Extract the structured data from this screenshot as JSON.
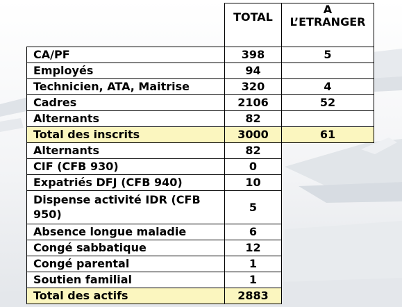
{
  "table": {
    "header": {
      "total": "TOTAL",
      "abroad_line1": "A",
      "abroad_line2": "L’ETRANGER"
    },
    "rows": [
      {
        "label": "CA/PF",
        "total": "398",
        "abroad": "5"
      },
      {
        "label": "Employés",
        "total": "94",
        "abroad": ""
      },
      {
        "label": "Technicien, ATA, Maitrise",
        "total": "320",
        "abroad": "4"
      },
      {
        "label": "Cadres",
        "total": "2106",
        "abroad": "52"
      },
      {
        "label": "Alternants",
        "total": "82",
        "abroad": ""
      },
      {
        "label": "Total des inscrits",
        "total": "3000",
        "abroad": "61"
      },
      {
        "label": "Alternants",
        "total": "82"
      },
      {
        "label": "CIF (CFB 930)",
        "total": "0"
      },
      {
        "label": "Expatriés DFJ (CFB 940)",
        "total": "10"
      },
      {
        "label": "Dispense activité IDR (CFB 950)",
        "total": "5"
      },
      {
        "label": "Absence longue maladie",
        "total": "6"
      },
      {
        "label": "Congé sabbatique",
        "total": "12"
      },
      {
        "label": "Congé parental",
        "total": "1"
      },
      {
        "label": "Soutien familial",
        "total": "1"
      },
      {
        "label": "Total des actifs",
        "total": "2883"
      }
    ]
  },
  "colors": {
    "highlight_row": "#fbf6bf",
    "border": "#000000"
  }
}
